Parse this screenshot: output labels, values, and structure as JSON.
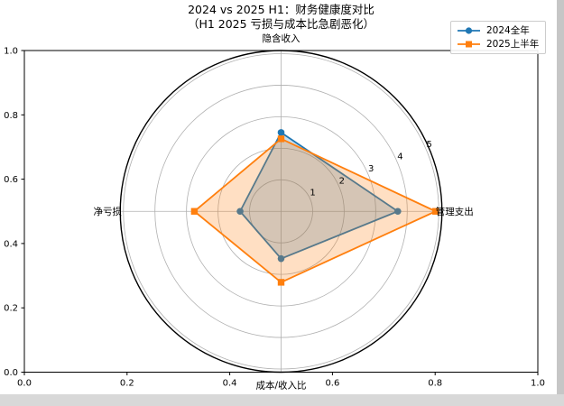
{
  "chart_data": {
    "type": "radar",
    "title": "2024 vs 2025 H1：财务健康度对比",
    "subtitle": "（H1 2025 亏损与成本比急剧恶化）",
    "categories": [
      {
        "label": "隐含收入",
        "angle_deg": 90
      },
      {
        "label": "管理支出",
        "angle_deg": 0
      },
      {
        "label": "成本/收入比",
        "angle_deg": 270
      },
      {
        "label": "净亏损",
        "angle_deg": 180
      }
    ],
    "series": [
      {
        "name": "2024全年",
        "color": "#1f77b4",
        "marker": "circle",
        "values": [
          2.5,
          3.7,
          1.5,
          1.3
        ]
      },
      {
        "name": "2025上半年",
        "color": "#ff7f0e",
        "marker": "square",
        "values": [
          2.3,
          4.9,
          2.25,
          2.75
        ]
      }
    ],
    "fill_alpha": 0.25,
    "r_gridlines": [
      1,
      2,
      3,
      4,
      5
    ],
    "r_tick_labels": [
      "1",
      "2",
      "3",
      "4",
      "5"
    ],
    "r_label_angle_deg": 22.5,
    "r_max": 5.1,
    "legend_position": "upper right",
    "grid_on": true,
    "colors": {
      "grid": "#b0b0b0",
      "spine": "#000000",
      "polar_edge": "#000000"
    }
  },
  "outer_axes": {
    "x_ticks": [
      "0.0",
      "0.2",
      "0.4",
      "0.6",
      "0.8",
      "1.0"
    ],
    "y_ticks": [
      "0.0",
      "0.2",
      "0.4",
      "0.6",
      "0.8",
      "1.0"
    ]
  },
  "window": {
    "edge_right_color": "#c6c6c6",
    "edge_bottom_color": "#d8d8d8",
    "background": "#ffffff"
  }
}
